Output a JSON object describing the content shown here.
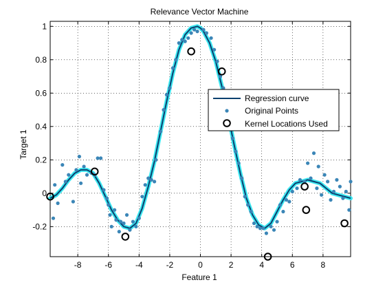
{
  "chart_data": {
    "type": "scatter",
    "title": "Relevance Vector Machine",
    "xlabel": "Feature 1",
    "ylabel": "Target 1",
    "xlim": [
      -9.8,
      9.8
    ],
    "ylim": [
      -0.38,
      1.03
    ],
    "xticks": [
      -8,
      -6,
      -4,
      -2,
      0,
      2,
      4,
      6,
      8
    ],
    "yticks": [
      -0.2,
      0,
      0.2,
      0.4,
      0.6,
      0.8,
      1
    ],
    "xtick_labels": [
      "-8",
      "-6",
      "-4",
      "-2",
      "0",
      "2",
      "4",
      "6",
      "8"
    ],
    "ytick_labels": [
      "-0.2",
      "0",
      "0.2",
      "0.4",
      "0.6",
      "0.8",
      "1"
    ],
    "grid": true,
    "legend_position": "right",
    "series": [
      {
        "name": "Regression curve",
        "kind": "line",
        "color": "#0b3f6e",
        "highlight_color": "#27e6f0",
        "x": [
          -9.8,
          -9.4,
          -9.0,
          -8.6,
          -8.2,
          -7.8,
          -7.4,
          -7.0,
          -6.6,
          -6.2,
          -5.8,
          -5.4,
          -5.0,
          -4.6,
          -4.2,
          -3.8,
          -3.4,
          -3.0,
          -2.6,
          -2.2,
          -1.8,
          -1.4,
          -1.0,
          -0.6,
          -0.2,
          0.0,
          0.2,
          0.6,
          1.0,
          1.4,
          1.8,
          2.2,
          2.6,
          3.0,
          3.4,
          3.8,
          4.2,
          4.6,
          5.0,
          5.4,
          5.8,
          6.2,
          6.6,
          7.0,
          7.4,
          7.8,
          8.2,
          8.6,
          9.0,
          9.4,
          9.8
        ],
        "y": [
          -0.03,
          -0.01,
          0.03,
          0.08,
          0.12,
          0.14,
          0.14,
          0.12,
          0.06,
          -0.02,
          -0.1,
          -0.16,
          -0.2,
          -0.21,
          -0.18,
          -0.09,
          0.04,
          0.19,
          0.37,
          0.55,
          0.72,
          0.86,
          0.95,
          0.99,
          1.0,
          0.99,
          0.97,
          0.9,
          0.79,
          0.64,
          0.47,
          0.29,
          0.12,
          -0.03,
          -0.13,
          -0.19,
          -0.21,
          -0.18,
          -0.11,
          -0.04,
          0.02,
          0.06,
          0.07,
          0.08,
          0.07,
          0.06,
          0.03,
          0.0,
          -0.01,
          -0.02,
          -0.03
        ]
      },
      {
        "name": "Original Points",
        "kind": "points",
        "color": "#3b86b7",
        "points": [
          [
            -9.6,
            -0.15
          ],
          [
            -9.5,
            0.05
          ],
          [
            -9.3,
            -0.06
          ],
          [
            -9.0,
            0.17
          ],
          [
            -8.8,
            0.07
          ],
          [
            -8.6,
            0.11
          ],
          [
            -8.3,
            -0.05
          ],
          [
            -8.1,
            0.14
          ],
          [
            -7.9,
            0.22
          ],
          [
            -7.8,
            0.06
          ],
          [
            -7.6,
            0.16
          ],
          [
            -7.4,
            0.11
          ],
          [
            -7.1,
            0.12
          ],
          [
            -6.9,
            0.11
          ],
          [
            -6.7,
            0.21
          ],
          [
            -6.5,
            0.21
          ],
          [
            -6.3,
            0.02
          ],
          [
            -6.1,
            -0.03
          ],
          [
            -6.0,
            -0.07
          ],
          [
            -5.9,
            -0.13
          ],
          [
            -5.8,
            -0.2
          ],
          [
            -5.6,
            -0.1
          ],
          [
            -5.5,
            -0.16
          ],
          [
            -5.3,
            -0.23
          ],
          [
            -5.2,
            -0.17
          ],
          [
            -5.0,
            -0.18
          ],
          [
            -4.8,
            -0.13
          ],
          [
            -4.6,
            -0.22
          ],
          [
            -4.4,
            -0.17
          ],
          [
            -4.2,
            -0.2
          ],
          [
            -4.0,
            -0.15
          ],
          [
            -3.8,
            -0.02
          ],
          [
            -3.6,
            0.05
          ],
          [
            -3.4,
            0.09
          ],
          [
            -3.2,
            0.08
          ],
          [
            -3.0,
            0.07
          ],
          [
            -2.9,
            0.2
          ],
          [
            -2.6,
            0.37
          ],
          [
            -2.4,
            0.5
          ],
          [
            -2.2,
            0.59
          ],
          [
            -2.0,
            0.63
          ],
          [
            -1.8,
            0.75
          ],
          [
            -1.6,
            0.8
          ],
          [
            -1.4,
            0.9
          ],
          [
            -1.2,
            0.92
          ],
          [
            -1.0,
            0.91
          ],
          [
            -0.8,
            0.93
          ],
          [
            -0.6,
            0.96
          ],
          [
            -0.4,
            0.98
          ],
          [
            -0.2,
            0.97
          ],
          [
            0.2,
            0.98
          ],
          [
            0.4,
            0.96
          ],
          [
            0.7,
            0.93
          ],
          [
            0.9,
            0.86
          ],
          [
            1.1,
            0.79
          ],
          [
            1.3,
            0.7
          ],
          [
            1.5,
            0.63
          ],
          [
            1.7,
            0.55
          ],
          [
            1.9,
            0.46
          ],
          [
            2.1,
            0.33
          ],
          [
            2.3,
            0.25
          ],
          [
            2.5,
            0.18
          ],
          [
            2.7,
            0.09
          ],
          [
            2.9,
            -0.02
          ],
          [
            3.1,
            -0.07
          ],
          [
            3.3,
            -0.11
          ],
          [
            3.5,
            -0.18
          ],
          [
            3.7,
            -0.2
          ],
          [
            3.9,
            -0.21
          ],
          [
            4.1,
            -0.21
          ],
          [
            4.3,
            -0.24
          ],
          [
            4.6,
            -0.2
          ],
          [
            4.8,
            -0.22
          ],
          [
            5.0,
            -0.17
          ],
          [
            5.2,
            -0.07
          ],
          [
            5.4,
            -0.11
          ],
          [
            5.6,
            -0.04
          ],
          [
            5.8,
            -0.05
          ],
          [
            6.0,
            0.01
          ],
          [
            6.3,
            0.03
          ],
          [
            6.5,
            0.08
          ],
          [
            6.8,
            0.07
          ],
          [
            7.0,
            0.18
          ],
          [
            7.2,
            0.09
          ],
          [
            7.4,
            0.24
          ],
          [
            7.6,
            0.03
          ],
          [
            7.7,
            0.16
          ],
          [
            7.9,
            -0.01
          ],
          [
            8.1,
            0.11
          ],
          [
            8.3,
            0.07
          ],
          [
            8.5,
            -0.04
          ],
          [
            8.7,
            0.01
          ],
          [
            8.9,
            0.08
          ],
          [
            9.1,
            0.04
          ],
          [
            9.3,
            -0.03
          ],
          [
            9.5,
            0.01
          ],
          [
            9.7,
            -0.1
          ],
          [
            9.8,
            0.07
          ]
        ]
      },
      {
        "name": "Kernel Locations Used",
        "kind": "markers",
        "color": "#000000",
        "points": [
          [
            -9.8,
            -0.02
          ],
          [
            -6.9,
            0.13
          ],
          [
            -4.9,
            -0.26
          ],
          [
            -0.6,
            0.85
          ],
          [
            1.4,
            0.73
          ],
          [
            4.4,
            -0.38
          ],
          [
            6.8,
            0.04
          ],
          [
            6.9,
            -0.1
          ],
          [
            9.4,
            -0.18
          ]
        ]
      }
    ]
  }
}
